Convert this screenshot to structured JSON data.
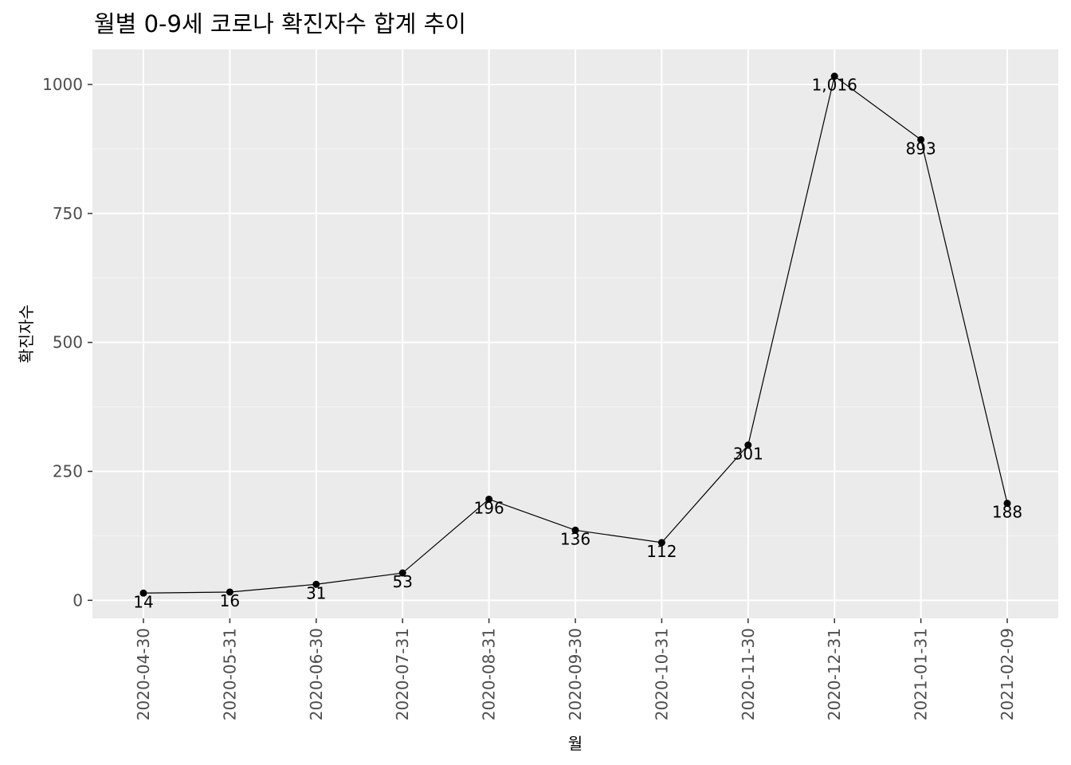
{
  "chart_data": {
    "type": "line",
    "title": "월별 0-9세 코로나 확진자수 합계 추이",
    "xlabel": "월",
    "ylabel": "확진자수",
    "categories": [
      "2020-04-30",
      "2020-05-31",
      "2020-06-30",
      "2020-07-31",
      "2020-08-31",
      "2020-09-30",
      "2020-10-31",
      "2020-11-30",
      "2020-12-31",
      "2021-01-31",
      "2021-02-09"
    ],
    "values": [
      14,
      16,
      31,
      53,
      196,
      136,
      112,
      301,
      1016,
      893,
      188
    ],
    "value_labels": [
      "14",
      "16",
      "31",
      "53",
      "196",
      "136",
      "112",
      "301",
      "1,016",
      "893",
      "188"
    ],
    "yticks": [
      0,
      250,
      500,
      750,
      1000
    ],
    "ytick_labels": [
      "0",
      "250",
      "500",
      "750",
      "1000"
    ],
    "ylim": [
      -35,
      1068
    ],
    "grid": true,
    "legend": "none",
    "colors": {
      "panel_background": "#EBEBEB",
      "grid_major": "#FFFFFF",
      "grid_minor": "#F5F5F5",
      "line": "#000000",
      "point": "#000000",
      "tick_text": "#4D4D4D",
      "tick_mark": "#333333"
    }
  }
}
